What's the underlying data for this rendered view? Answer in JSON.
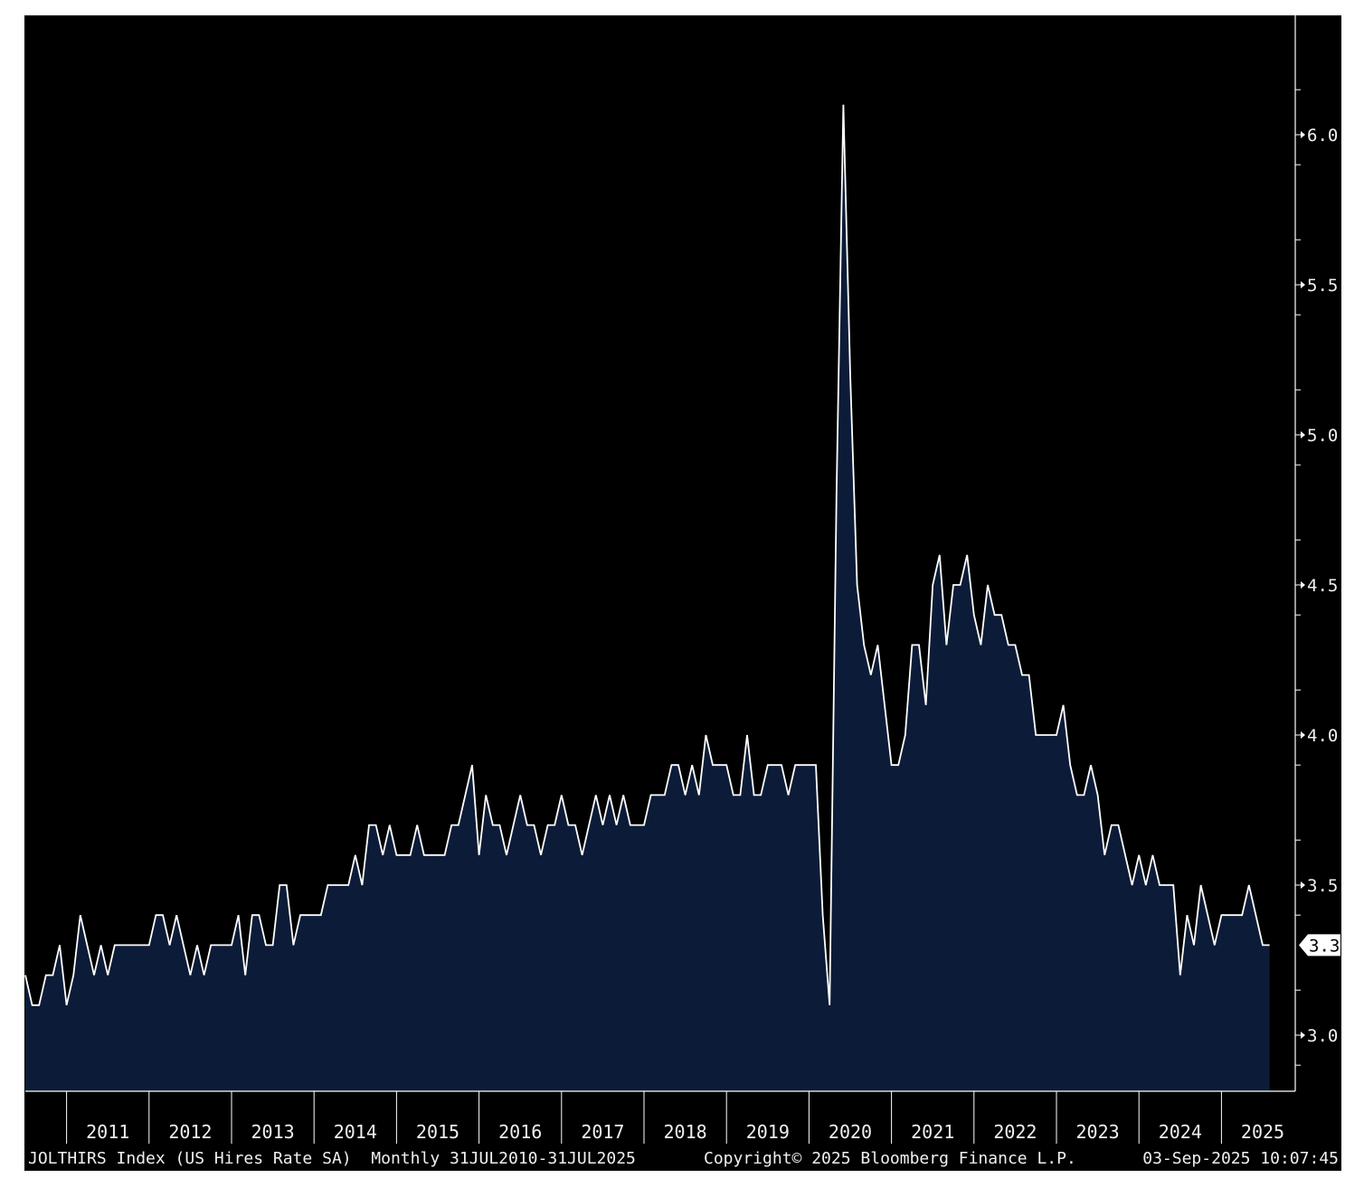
{
  "chart_data": {
    "type": "area",
    "x_start": "2010-07",
    "frequency": "monthly",
    "values": [
      3.2,
      3.1,
      3.1,
      3.2,
      3.2,
      3.3,
      3.1,
      3.2,
      3.4,
      3.3,
      3.2,
      3.3,
      3.2,
      3.3,
      3.3,
      3.3,
      3.3,
      3.3,
      3.3,
      3.4,
      3.4,
      3.3,
      3.4,
      3.3,
      3.2,
      3.3,
      3.2,
      3.3,
      3.3,
      3.3,
      3.3,
      3.4,
      3.2,
      3.4,
      3.4,
      3.3,
      3.3,
      3.5,
      3.5,
      3.3,
      3.4,
      3.4,
      3.4,
      3.4,
      3.5,
      3.5,
      3.5,
      3.5,
      3.6,
      3.5,
      3.7,
      3.7,
      3.6,
      3.7,
      3.6,
      3.6,
      3.6,
      3.7,
      3.6,
      3.6,
      3.6,
      3.6,
      3.7,
      3.7,
      3.8,
      3.9,
      3.6,
      3.8,
      3.7,
      3.7,
      3.6,
      3.7,
      3.8,
      3.7,
      3.7,
      3.6,
      3.7,
      3.7,
      3.8,
      3.7,
      3.7,
      3.6,
      3.7,
      3.8,
      3.7,
      3.8,
      3.7,
      3.8,
      3.7,
      3.7,
      3.7,
      3.8,
      3.8,
      3.8,
      3.9,
      3.9,
      3.8,
      3.9,
      3.8,
      4.0,
      3.9,
      3.9,
      3.9,
      3.8,
      3.8,
      4.0,
      3.8,
      3.8,
      3.9,
      3.9,
      3.9,
      3.8,
      3.9,
      3.9,
      3.9,
      3.9,
      3.4,
      3.1,
      4.8,
      6.1,
      5.2,
      4.5,
      4.3,
      4.2,
      4.3,
      4.1,
      3.9,
      3.9,
      4.0,
      4.3,
      4.3,
      4.1,
      4.5,
      4.6,
      4.3,
      4.5,
      4.5,
      4.6,
      4.4,
      4.3,
      4.5,
      4.4,
      4.4,
      4.3,
      4.3,
      4.2,
      4.2,
      4.0,
      4.0,
      4.0,
      4.0,
      4.1,
      3.9,
      3.8,
      3.8,
      3.9,
      3.8,
      3.6,
      3.7,
      3.7,
      3.6,
      3.5,
      3.6,
      3.5,
      3.6,
      3.5,
      3.5,
      3.5,
      3.2,
      3.4,
      3.3,
      3.5,
      3.4,
      3.3,
      3.4,
      3.4,
      3.4,
      3.4,
      3.5,
      3.4,
      3.3,
      3.3
    ],
    "xlim": [
      "2010-07",
      "2025-11"
    ],
    "ylim": [
      2.81,
      6.4
    ],
    "x_tick_labels": [
      "2011",
      "2012",
      "2013",
      "2014",
      "2015",
      "2016",
      "2017",
      "2018",
      "2019",
      "2020",
      "2021",
      "2022",
      "2023",
      "2024",
      "2025"
    ],
    "y_tick_labels": [
      "3.0",
      "3.5",
      "4.0",
      "4.5",
      "5.0",
      "5.5",
      "6.0"
    ],
    "last_value_label": "3.3",
    "grid": false,
    "legend": "none",
    "colors": {
      "plot_bg": "#000000",
      "area_fill": "#0c1c38",
      "line": "#ffffff",
      "axis": "#ffffff",
      "tick_text": "#f0f0f0",
      "footer_bg": "#000000",
      "page_bg": "#ffffff"
    }
  },
  "footer": {
    "series_description": "JOLTHIRS Index (US Hires Rate SA)  Monthly 31JUL2010-31JUL2025",
    "copyright": "Copyright© 2025 Bloomberg Finance L.P.",
    "timestamp": "03-Sep-2025 10:07:45"
  }
}
